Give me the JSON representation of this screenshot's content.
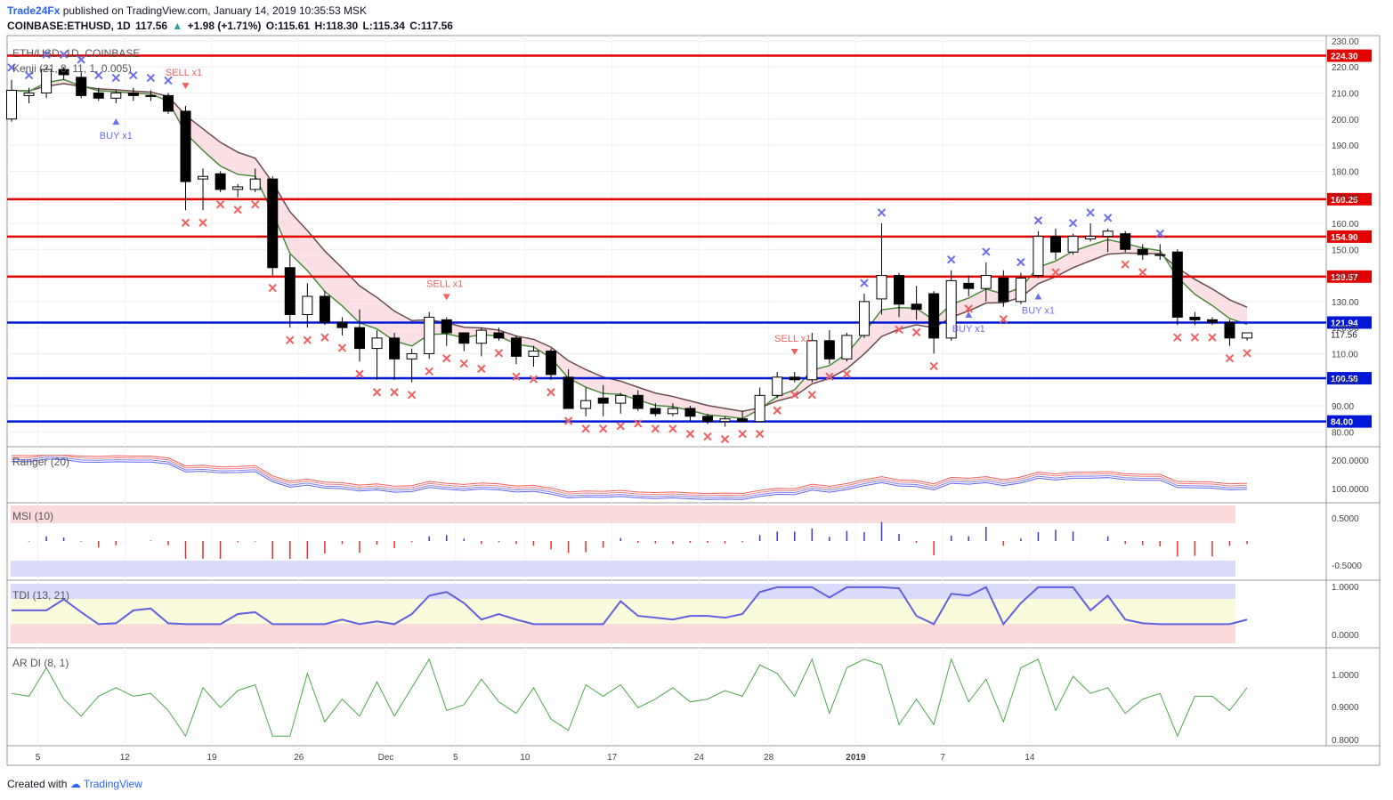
{
  "header": {
    "publisher": "Trade24Fx",
    "published_text": "published on TradingView.com, January 14, 2019 10:35:53 MSK",
    "symbol": "COINBASE:ETHUSD, 1D",
    "last": "117.56",
    "change": "+1.98 (+1.71%)",
    "open": "O:115.61",
    "high": "H:118.30",
    "low": "L:115.34",
    "close": "C:117.56"
  },
  "footer": {
    "created_with": "Created with",
    "brand": "TradingView"
  },
  "chart_data": [
    {
      "type": "candlestick",
      "title": "ETH/USD, 1D, COINBASE",
      "indicator": "Kenji (21, 8, 11, 1, 0.005)",
      "x_ticks": [
        "5",
        "12",
        "19",
        "26",
        "Dec",
        "5",
        "10",
        "17",
        "24",
        "28",
        "2019",
        "7",
        "14"
      ],
      "y_ticks": [
        80,
        90,
        100,
        110,
        120,
        130,
        140,
        150,
        160,
        170,
        180,
        190,
        200,
        210,
        220,
        230
      ],
      "ylim": [
        75,
        232
      ],
      "candles": [
        {
          "o": 200,
          "h": 215,
          "l": 199,
          "c": 211
        },
        {
          "o": 209,
          "h": 212,
          "l": 206,
          "c": 210
        },
        {
          "o": 210,
          "h": 220,
          "l": 208,
          "c": 219
        },
        {
          "o": 219,
          "h": 220,
          "l": 215,
          "c": 217
        },
        {
          "o": 216,
          "h": 218,
          "l": 208,
          "c": 209
        },
        {
          "o": 210,
          "h": 212,
          "l": 207,
          "c": 208
        },
        {
          "o": 208,
          "h": 211,
          "l": 206,
          "c": 210
        },
        {
          "o": 210,
          "h": 212,
          "l": 207,
          "c": 209
        },
        {
          "o": 209,
          "h": 211,
          "l": 207,
          "c": 209
        },
        {
          "o": 209,
          "h": 210,
          "l": 202,
          "c": 203
        },
        {
          "o": 203,
          "h": 205,
          "l": 165,
          "c": 176
        },
        {
          "o": 177,
          "h": 181,
          "l": 165,
          "c": 178
        },
        {
          "o": 179,
          "h": 180,
          "l": 172,
          "c": 173
        },
        {
          "o": 173,
          "h": 175,
          "l": 170,
          "c": 174
        },
        {
          "o": 173,
          "h": 181,
          "l": 172,
          "c": 177
        },
        {
          "o": 177,
          "h": 178,
          "l": 140,
          "c": 143
        },
        {
          "o": 143,
          "h": 148,
          "l": 120,
          "c": 125
        },
        {
          "o": 125,
          "h": 137,
          "l": 120,
          "c": 132
        },
        {
          "o": 132,
          "h": 134,
          "l": 121,
          "c": 122
        },
        {
          "o": 122,
          "h": 124,
          "l": 117,
          "c": 120
        },
        {
          "o": 120,
          "h": 127,
          "l": 107,
          "c": 112
        },
        {
          "o": 112,
          "h": 119,
          "l": 100,
          "c": 116
        },
        {
          "o": 116,
          "h": 118,
          "l": 100,
          "c": 108
        },
        {
          "o": 108,
          "h": 112,
          "l": 99,
          "c": 110
        },
        {
          "o": 110,
          "h": 126,
          "l": 108,
          "c": 124
        },
        {
          "o": 123,
          "h": 124,
          "l": 113,
          "c": 118
        },
        {
          "o": 118,
          "h": 118,
          "l": 111,
          "c": 114
        },
        {
          "o": 114,
          "h": 120,
          "l": 109,
          "c": 119
        },
        {
          "o": 118,
          "h": 120,
          "l": 115,
          "c": 116
        },
        {
          "o": 116,
          "h": 117,
          "l": 106,
          "c": 109
        },
        {
          "o": 109,
          "h": 113,
          "l": 105,
          "c": 111
        },
        {
          "o": 111,
          "h": 112,
          "l": 100,
          "c": 102
        },
        {
          "o": 101,
          "h": 104,
          "l": 89,
          "c": 89
        },
        {
          "o": 89,
          "h": 97,
          "l": 86,
          "c": 92
        },
        {
          "o": 93,
          "h": 98,
          "l": 86,
          "c": 91
        },
        {
          "o": 91,
          "h": 95,
          "l": 87,
          "c": 94
        },
        {
          "o": 94,
          "h": 96,
          "l": 88,
          "c": 89
        },
        {
          "o": 89,
          "h": 91,
          "l": 86,
          "c": 87
        },
        {
          "o": 87,
          "h": 91,
          "l": 86,
          "c": 89
        },
        {
          "o": 89,
          "h": 90,
          "l": 84,
          "c": 86
        },
        {
          "o": 86,
          "h": 87,
          "l": 83,
          "c": 84
        },
        {
          "o": 84,
          "h": 86,
          "l": 82,
          "c": 85
        },
        {
          "o": 85,
          "h": 88,
          "l": 84,
          "c": 84
        },
        {
          "o": 84,
          "h": 97,
          "l": 84,
          "c": 94
        },
        {
          "o": 94,
          "h": 103,
          "l": 93,
          "c": 101
        },
        {
          "o": 101,
          "h": 103,
          "l": 99,
          "c": 100
        },
        {
          "o": 100,
          "h": 118,
          "l": 99,
          "c": 115
        },
        {
          "o": 115,
          "h": 119,
          "l": 106,
          "c": 108
        },
        {
          "o": 108,
          "h": 118,
          "l": 107,
          "c": 117
        },
        {
          "o": 117,
          "h": 133,
          "l": 116,
          "c": 130
        },
        {
          "o": 131,
          "h": 160,
          "l": 125,
          "c": 140
        },
        {
          "o": 140,
          "h": 141,
          "l": 124,
          "c": 129
        },
        {
          "o": 129,
          "h": 136,
          "l": 123,
          "c": 127
        },
        {
          "o": 133,
          "h": 134,
          "l": 110,
          "c": 116
        },
        {
          "o": 116,
          "h": 142,
          "l": 115,
          "c": 138
        },
        {
          "o": 137,
          "h": 140,
          "l": 132,
          "c": 135
        },
        {
          "o": 135,
          "h": 145,
          "l": 130,
          "c": 140
        },
        {
          "o": 139,
          "h": 142,
          "l": 128,
          "c": 130
        },
        {
          "o": 130,
          "h": 141,
          "l": 129,
          "c": 139
        },
        {
          "o": 140,
          "h": 157,
          "l": 139,
          "c": 155
        },
        {
          "o": 155,
          "h": 158,
          "l": 146,
          "c": 149
        },
        {
          "o": 149,
          "h": 156,
          "l": 148,
          "c": 155
        },
        {
          "o": 154,
          "h": 160,
          "l": 153,
          "c": 155
        },
        {
          "o": 155,
          "h": 158,
          "l": 149,
          "c": 157
        },
        {
          "o": 156,
          "h": 157,
          "l": 149,
          "c": 150
        },
        {
          "o": 150,
          "h": 152,
          "l": 146,
          "c": 148
        },
        {
          "o": 148,
          "h": 152,
          "l": 146,
          "c": 148
        },
        {
          "o": 149,
          "h": 150,
          "l": 121,
          "c": 124
        },
        {
          "o": 124,
          "h": 126,
          "l": 121,
          "c": 123
        },
        {
          "o": 123,
          "h": 124,
          "l": 121,
          "c": 122
        },
        {
          "o": 122,
          "h": 123,
          "l": 113,
          "c": 116
        },
        {
          "o": 116,
          "h": 118,
          "l": 115,
          "c": 118
        }
      ],
      "horizontal_levels": [
        {
          "value": 224.3,
          "label": "224.30",
          "color": "#e30000"
        },
        {
          "value": 169.25,
          "label": "169.25",
          "color": "#e30000"
        },
        {
          "value": 154.9,
          "label": "154.90",
          "color": "#e30000"
        },
        {
          "value": 139.57,
          "label": "139.57",
          "color": "#e30000"
        },
        {
          "value": 121.94,
          "label": "121.94",
          "color": "#0018d6"
        },
        {
          "value": 100.58,
          "label": "100.58",
          "color": "#0018d6"
        },
        {
          "value": 84.0,
          "label": "84.00",
          "color": "#0018d6"
        }
      ],
      "last_price_label": "117.56",
      "signals": [
        {
          "text": "SELL x1",
          "index": 10,
          "side": "sell"
        },
        {
          "text": "BUY x1",
          "index": 6,
          "side": "buy"
        },
        {
          "text": "SELL x1",
          "index": 25,
          "side": "sell"
        },
        {
          "text": "SELL x1",
          "index": 45,
          "side": "sell"
        },
        {
          "text": "BUY x1",
          "index": 55,
          "side": "buy"
        },
        {
          "text": "BUY x1",
          "index": 59,
          "side": "buy"
        }
      ]
    },
    {
      "type": "line",
      "title": "Ranger (20)",
      "y_ticks": [
        "200.0000",
        "100.0000"
      ]
    },
    {
      "type": "bar",
      "title": "MSI (10)",
      "y_ticks": [
        "0.5000",
        "-0.5000"
      ]
    },
    {
      "type": "line",
      "title": "TDI (13, 21)",
      "y_ticks": [
        "1.0000",
        "0.0000"
      ]
    },
    {
      "type": "line",
      "title": "AR DI (8, 1)",
      "y_ticks": [
        "1.0000",
        "0.9000",
        "0.8000"
      ]
    }
  ]
}
